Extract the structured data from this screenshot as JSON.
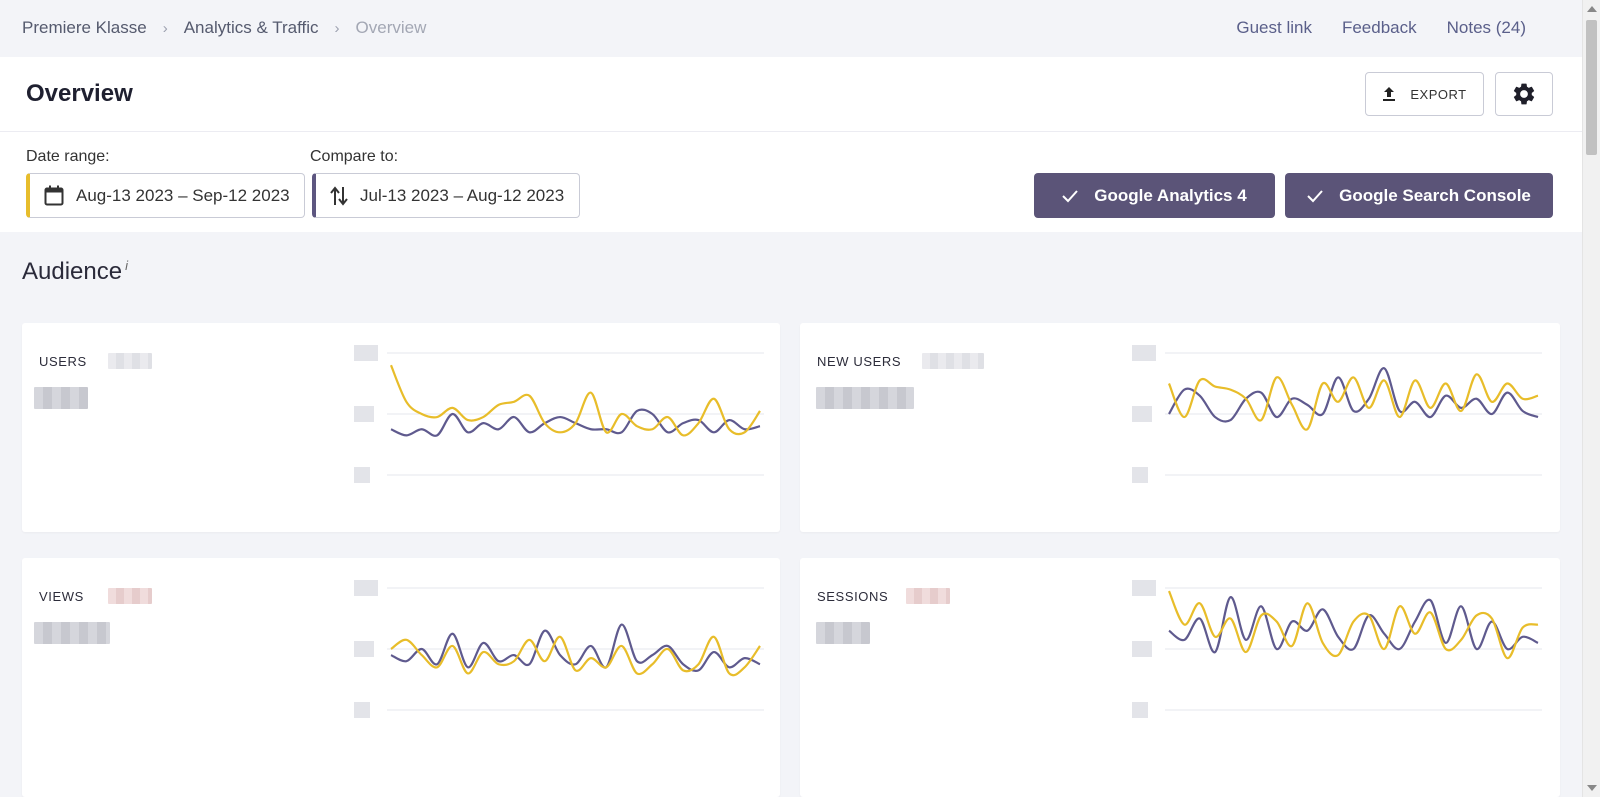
{
  "breadcrumb": {
    "items": [
      "Premiere Klasse",
      "Analytics & Traffic",
      "Overview"
    ],
    "separator": "›"
  },
  "toplinks": {
    "guest": "Guest link",
    "feedback": "Feedback",
    "notes": "Notes (24)"
  },
  "header": {
    "title": "Overview",
    "export_label": "EXPORT"
  },
  "filters": {
    "date_label": "Date range:",
    "date_value": "Aug-13 2023 – Sep-12 2023",
    "compare_label": "Compare to:",
    "compare_value": "Jul-13 2023 – Aug-12 2023"
  },
  "sources": {
    "ga4": "Google Analytics 4",
    "gsc": "Google Search Console"
  },
  "section": {
    "title": "Audience",
    "info": "i"
  },
  "colors": {
    "current": "#e8bd2a",
    "compare": "#5f5a8e",
    "button": "#5b5478"
  },
  "cards": [
    {
      "label": "USERS",
      "current": [
        72,
        48,
        40,
        38,
        44,
        36,
        38,
        46,
        48,
        52,
        34,
        28,
        34,
        54,
        28,
        40,
        32,
        30,
        38,
        26,
        34,
        50,
        30,
        28,
        42
      ],
      "compare": [
        30,
        26,
        30,
        26,
        40,
        28,
        34,
        30,
        38,
        28,
        34,
        38,
        34,
        30,
        30,
        28,
        42,
        40,
        28,
        34,
        36,
        28,
        36,
        30,
        32
      ]
    },
    {
      "label": "NEW USERS",
      "current": [
        60,
        38,
        62,
        58,
        56,
        50,
        36,
        64,
        46,
        30,
        60,
        48,
        64,
        44,
        62,
        38,
        62,
        44,
        60,
        42,
        66,
        48,
        60,
        50,
        52
      ],
      "compare": [
        40,
        56,
        52,
        38,
        36,
        50,
        54,
        38,
        50,
        46,
        40,
        64,
        42,
        50,
        70,
        42,
        48,
        38,
        52,
        44,
        50,
        40,
        54,
        42,
        38
      ]
    },
    {
      "label": "VIEWS",
      "current": [
        40,
        46,
        36,
        28,
        42,
        24,
        38,
        30,
        32,
        46,
        32,
        48,
        26,
        34,
        28,
        42,
        24,
        30,
        40,
        26,
        30,
        48,
        24,
        28,
        42
      ],
      "compare": [
        36,
        32,
        40,
        30,
        50,
        28,
        44,
        32,
        36,
        30,
        52,
        36,
        30,
        42,
        28,
        56,
        32,
        36,
        42,
        30,
        26,
        38,
        28,
        34,
        30
      ],
      "blurs": [
        "pink"
      ]
    },
    {
      "label": "SESSIONS",
      "current": [
        78,
        56,
        70,
        48,
        60,
        38,
        62,
        58,
        42,
        70,
        44,
        36,
        58,
        62,
        40,
        68,
        50,
        64,
        40,
        46,
        62,
        60,
        34,
        54,
        56
      ],
      "compare": [
        52,
        46,
        60,
        38,
        74,
        46,
        68,
        40,
        58,
        52,
        66,
        48,
        40,
        62,
        50,
        40,
        58,
        72,
        44,
        68,
        40,
        58,
        40,
        48,
        44
      ],
      "blurs": [
        "pink"
      ]
    }
  ]
}
